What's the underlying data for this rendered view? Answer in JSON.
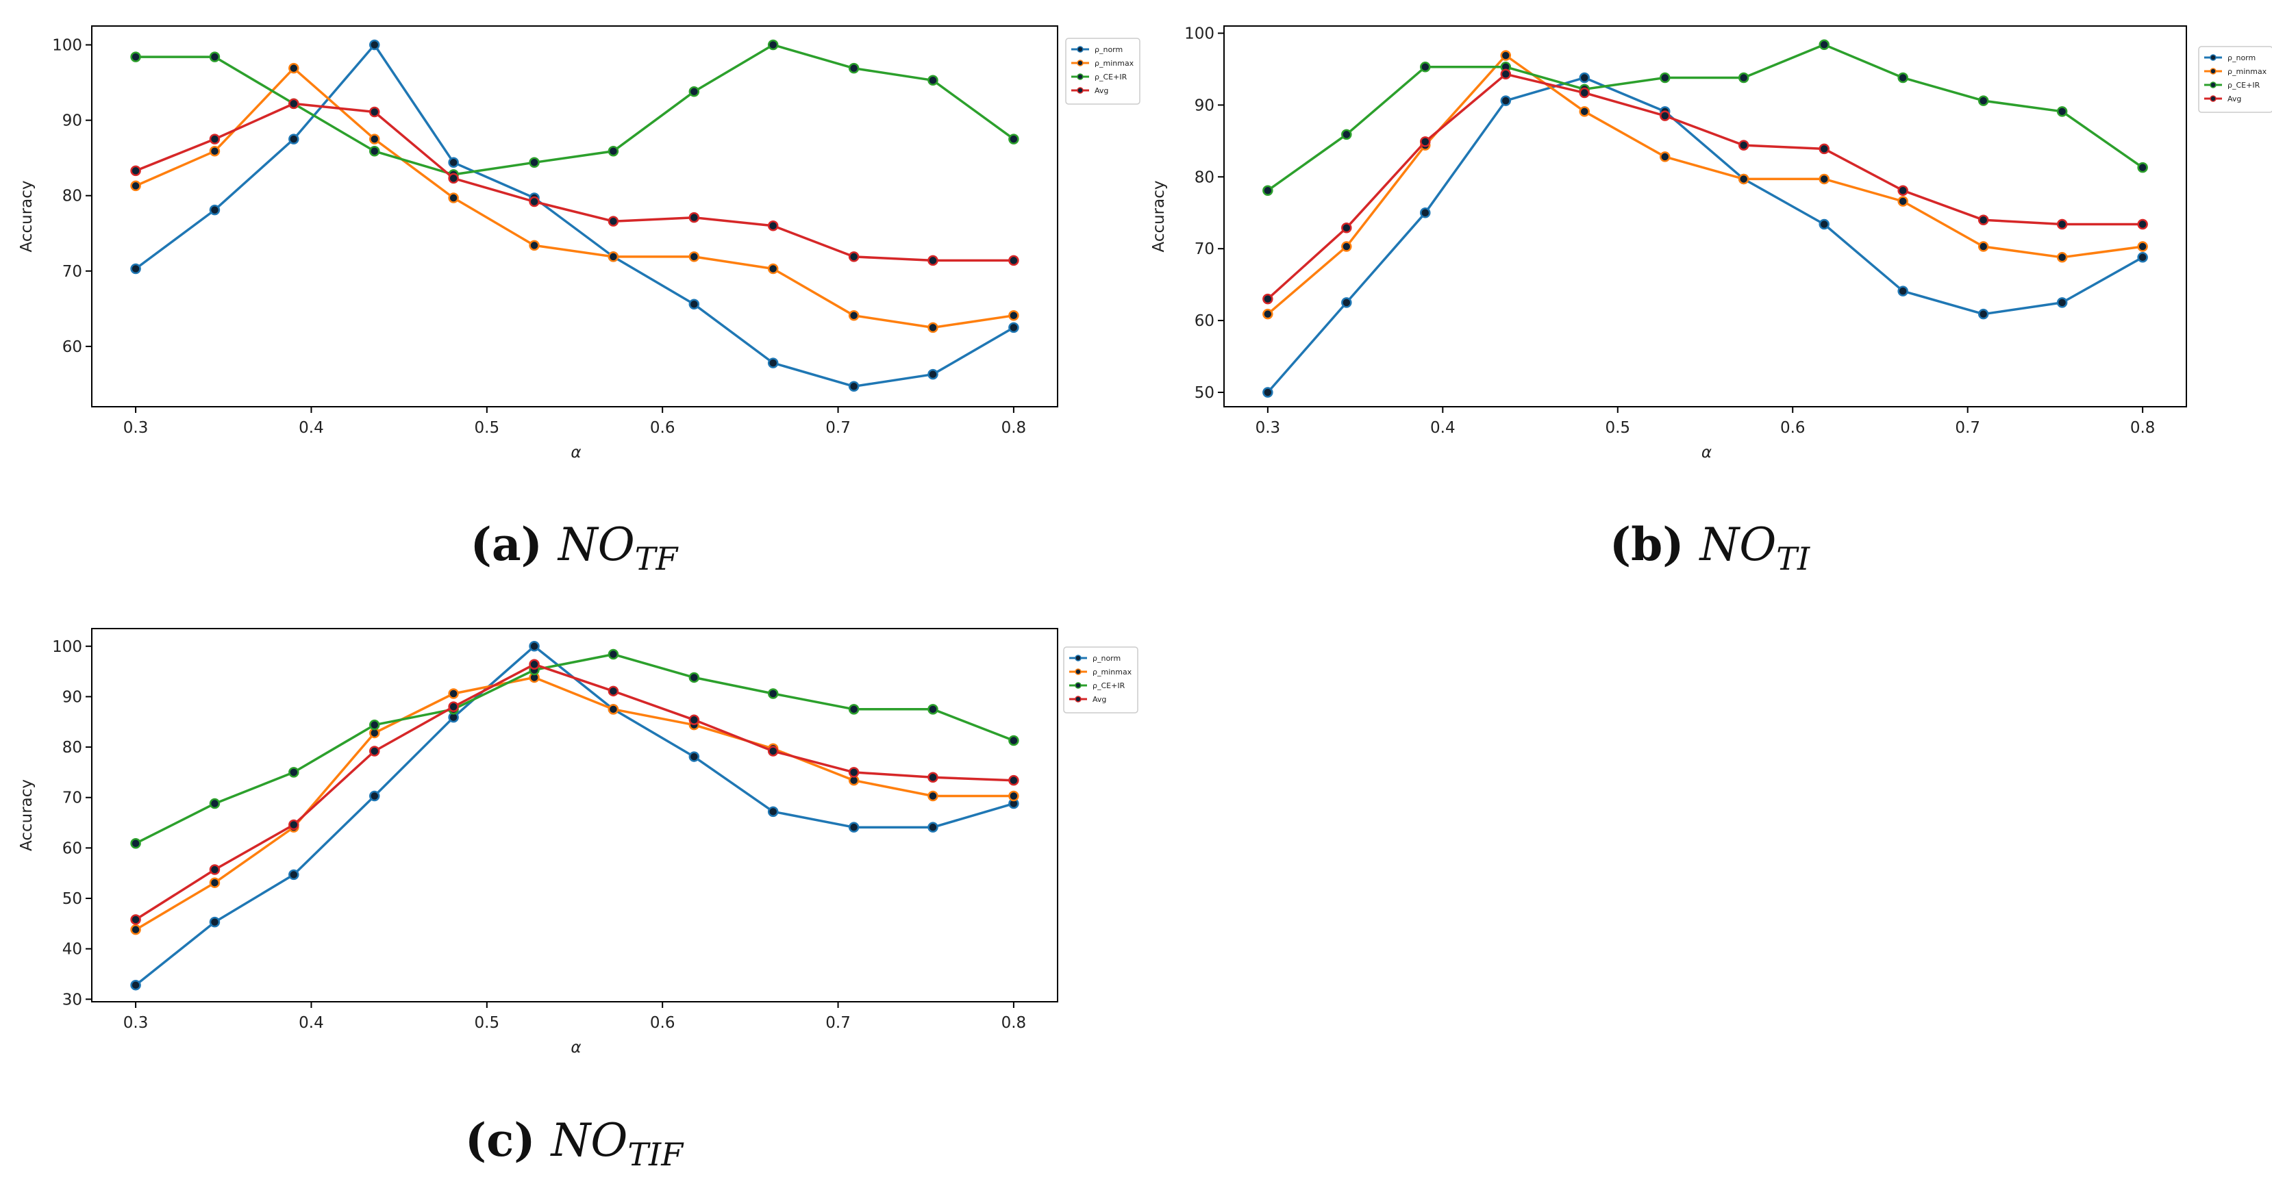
{
  "chart_data": [
    {
      "type": "line",
      "panel_label": "(a)",
      "caption_letters": "NO",
      "caption_subscript": "TF",
      "xlabel": "α",
      "ylabel": "Accuracy",
      "xlim": [
        0.275,
        0.825
      ],
      "ylim": [
        52,
        102.5
      ],
      "xticks": [
        "0.3",
        "0.4",
        "0.5",
        "0.6",
        "0.7",
        "0.8"
      ],
      "yticks": [
        "60",
        "70",
        "80",
        "90",
        "100"
      ],
      "legend_position": "right",
      "x": [
        0.3,
        0.345,
        0.39,
        0.436,
        0.481,
        0.527,
        0.572,
        0.618,
        0.663,
        0.709,
        0.754,
        0.8
      ],
      "series": [
        {
          "name": "ρ_norm",
          "color": "#1f77b4",
          "values": [
            70.3,
            78.1,
            87.5,
            100,
            84.4,
            79.7,
            71.9,
            65.6,
            57.8,
            54.7,
            56.3,
            62.5
          ]
        },
        {
          "name": "ρ_minmax",
          "color": "#ff7f0e",
          "values": [
            81.3,
            85.9,
            96.9,
            87.5,
            79.7,
            73.4,
            71.9,
            71.9,
            70.3,
            64.1,
            62.5,
            64.1
          ]
        },
        {
          "name": "ρ_CE+IR",
          "color": "#2ca02c",
          "values": [
            98.4,
            98.4,
            92.2,
            85.9,
            82.8,
            84.4,
            85.9,
            93.8,
            100,
            96.9,
            95.3,
            87.5
          ]
        },
        {
          "name": "Avg",
          "color": "#d62728",
          "values": [
            83.3,
            87.5,
            92.2,
            91.1,
            82.3,
            79.2,
            76.6,
            77.1,
            76.0,
            71.9,
            71.4,
            71.4
          ]
        }
      ]
    },
    {
      "type": "line",
      "panel_label": "(b)",
      "caption_letters": "NO",
      "caption_subscript": "TI",
      "xlabel": "α",
      "ylabel": "Accuracy",
      "xlim": [
        0.275,
        0.825
      ],
      "ylim": [
        48,
        101
      ],
      "xticks": [
        "0.3",
        "0.4",
        "0.5",
        "0.6",
        "0.7",
        "0.8"
      ],
      "yticks": [
        "50",
        "60",
        "70",
        "80",
        "90",
        "100"
      ],
      "legend_position": "right",
      "x": [
        0.3,
        0.345,
        0.39,
        0.436,
        0.481,
        0.527,
        0.572,
        0.618,
        0.663,
        0.709,
        0.754,
        0.8
      ],
      "series": [
        {
          "name": "ρ_norm",
          "color": "#1f77b4",
          "values": [
            50,
            62.5,
            75,
            90.6,
            93.8,
            89.1,
            79.7,
            73.4,
            64.1,
            60.9,
            62.5,
            68.8
          ]
        },
        {
          "name": "ρ_minmax",
          "color": "#ff7f0e",
          "values": [
            60.9,
            70.3,
            84.4,
            96.9,
            89.1,
            82.8,
            79.7,
            79.7,
            76.6,
            70.3,
            68.8,
            70.3
          ]
        },
        {
          "name": "ρ_CE+IR",
          "color": "#2ca02c",
          "values": [
            78.1,
            85.9,
            95.3,
            95.3,
            92.2,
            93.8,
            93.8,
            98.4,
            93.8,
            90.6,
            89.1,
            81.3
          ]
        },
        {
          "name": "Avg",
          "color": "#d62728",
          "values": [
            63.0,
            72.9,
            84.9,
            94.3,
            91.7,
            88.5,
            84.4,
            83.9,
            78.1,
            74.0,
            73.4,
            73.4
          ]
        }
      ]
    },
    {
      "type": "line",
      "panel_label": "(c)",
      "caption_letters": "NO",
      "caption_subscript": "TIF",
      "xlabel": "α",
      "ylabel": "Accuracy",
      "xlim": [
        0.275,
        0.825
      ],
      "ylim": [
        29.5,
        103.5
      ],
      "xticks": [
        "0.3",
        "0.4",
        "0.5",
        "0.6",
        "0.7",
        "0.8"
      ],
      "yticks": [
        "30",
        "40",
        "50",
        "60",
        "70",
        "80",
        "90",
        "100"
      ],
      "legend_position": "right",
      "x": [
        0.3,
        0.345,
        0.39,
        0.436,
        0.481,
        0.527,
        0.572,
        0.618,
        0.663,
        0.709,
        0.754,
        0.8
      ],
      "series": [
        {
          "name": "ρ_norm",
          "color": "#1f77b4",
          "values": [
            32.8,
            45.3,
            54.7,
            70.3,
            85.9,
            100,
            87.5,
            78.1,
            67.2,
            64.1,
            64.1,
            68.8
          ]
        },
        {
          "name": "ρ_minmax",
          "color": "#ff7f0e",
          "values": [
            43.8,
            53.1,
            64.1,
            82.8,
            90.6,
            93.8,
            87.5,
            84.4,
            79.7,
            73.4,
            70.3,
            70.3
          ]
        },
        {
          "name": "ρ_CE+IR",
          "color": "#2ca02c",
          "values": [
            60.9,
            68.8,
            75,
            84.4,
            87.5,
            95.3,
            98.4,
            93.8,
            90.6,
            87.5,
            87.5,
            81.3
          ]
        },
        {
          "name": "Avg",
          "color": "#d62728",
          "values": [
            45.8,
            55.7,
            64.6,
            79.2,
            88.0,
            96.4,
            91.1,
            85.4,
            79.2,
            75.0,
            74.0,
            73.4
          ]
        }
      ]
    }
  ]
}
